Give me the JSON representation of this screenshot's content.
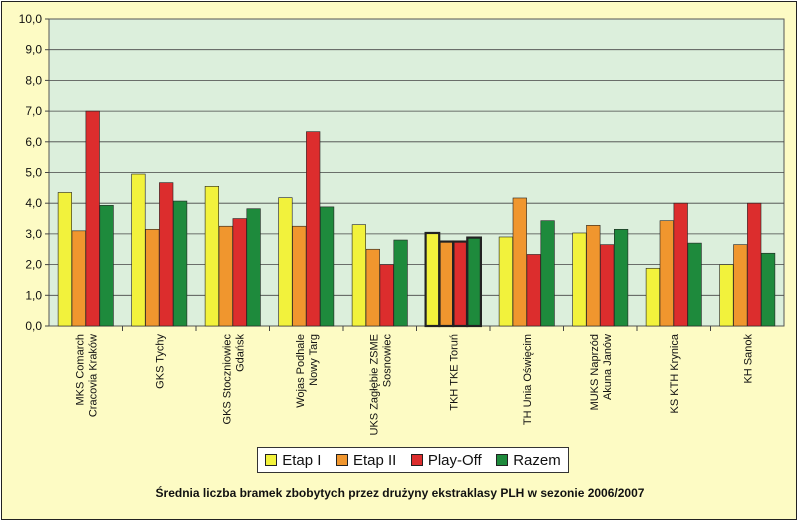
{
  "chart_data": {
    "type": "bar",
    "title": "Średnia liczba bramek zbobytych przez drużyny ekstraklasy PLH w sezonie 2006/2007",
    "xlabel": "",
    "ylabel": "",
    "ylim": [
      0,
      10
    ],
    "yticks": [
      "0,0",
      "1,0",
      "2,0",
      "3,0",
      "4,0",
      "5,0",
      "6,0",
      "7,0",
      "8,0",
      "9,0",
      "10,0"
    ],
    "grid": true,
    "legend_position": "bottom",
    "highlighted_category": 5,
    "categories": [
      [
        "MKS Comarch",
        "Cracovia Kraków"
      ],
      [
        "GKS Tychy"
      ],
      [
        "GKS Stoczniowiec",
        "Gdańsk"
      ],
      [
        "Wojas Podhale",
        "Nowy Targ"
      ],
      [
        "UKS Zagłębie ZSME",
        "Sosnowiec"
      ],
      [
        "TKH TKE Toruń"
      ],
      [
        "TH Unia Oświęcim"
      ],
      [
        "MUKS Naprzód",
        "Akuna Janów"
      ],
      [
        "KS KTH Krynica"
      ],
      [
        "KH Sanok"
      ]
    ],
    "series": [
      {
        "name": "Etap I",
        "color": "#f2f23c",
        "values": [
          4.35,
          4.95,
          4.55,
          4.18,
          3.3,
          3.03,
          2.9,
          3.03,
          1.88,
          2.0
        ]
      },
      {
        "name": "Etap II",
        "color": "#f0962e",
        "values": [
          3.1,
          3.15,
          3.25,
          3.25,
          2.5,
          2.75,
          4.17,
          3.28,
          3.43,
          2.65
        ]
      },
      {
        "name": "Play-Off",
        "color": "#dc2d2d",
        "values": [
          7.0,
          4.67,
          3.5,
          6.33,
          2.0,
          2.75,
          2.33,
          2.65,
          4.0,
          4.0
        ]
      },
      {
        "name": "Razem",
        "color": "#1e8a3c",
        "values": [
          3.93,
          4.07,
          3.82,
          3.88,
          2.8,
          2.88,
          3.43,
          3.15,
          2.7,
          2.37
        ]
      }
    ]
  }
}
